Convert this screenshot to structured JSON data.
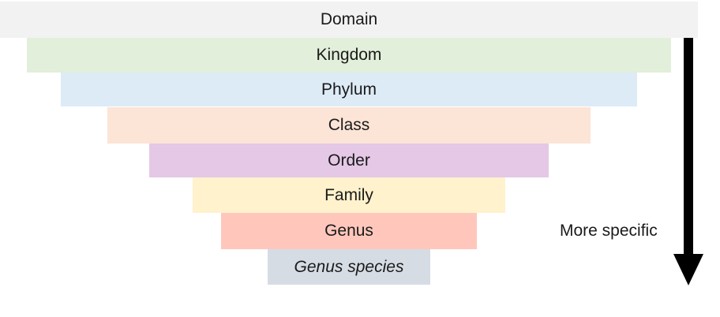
{
  "levels": [
    {
      "label": "Domain",
      "color": "#f2f2f2"
    },
    {
      "label": "Kingdom",
      "color": "#e2efda"
    },
    {
      "label": "Phylum",
      "color": "#ddebf7"
    },
    {
      "label": "Class",
      "color": "#fce4d6"
    },
    {
      "label": "Order",
      "color": "#e4c8e6"
    },
    {
      "label": "Family",
      "color": "#fff2cc"
    },
    {
      "label": "Genus",
      "color": "#ffc7bc"
    },
    {
      "label": "Genus species",
      "color": "#d6dce4"
    }
  ],
  "arrow": {
    "label": "More specific",
    "color": "#000000",
    "direction": "down"
  }
}
